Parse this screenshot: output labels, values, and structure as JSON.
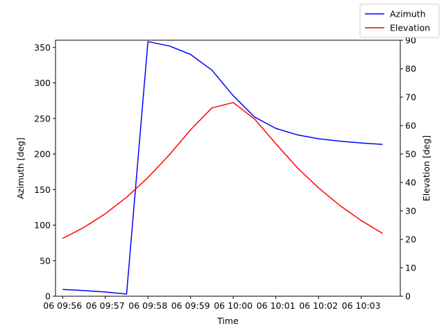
{
  "chart_data": {
    "type": "line",
    "xlabel": "Time",
    "x_tick_labels": [
      "06 09:56",
      "06 09:57",
      "06 09:58",
      "06 09:59",
      "06 10:00",
      "06 10:01",
      "06 10:02",
      "06 10:03"
    ],
    "x": [
      "09:56:00",
      "09:56:30",
      "09:57:00",
      "09:57:30",
      "09:58:00",
      "09:58:30",
      "09:59:00",
      "09:59:30",
      "10:00:00",
      "10:00:30",
      "10:01:00",
      "10:01:30",
      "10:02:00",
      "10:02:30",
      "10:03:00",
      "10:03:30"
    ],
    "x_range": [
      "09:55:50",
      "10:03:55"
    ],
    "axes": {
      "left": {
        "label": "Azimuth [deg]",
        "ylim": [
          0,
          360
        ],
        "ticks": [
          0,
          50,
          100,
          150,
          200,
          250,
          300,
          350
        ]
      },
      "right": {
        "label": "Elevation [deg]",
        "ylim": [
          0,
          90
        ],
        "ticks": [
          0,
          10,
          20,
          30,
          40,
          50,
          60,
          70,
          80,
          90
        ]
      }
    },
    "series": [
      {
        "name": "Azimuth",
        "axis": "left",
        "color": "#0000ff",
        "values": [
          9.5,
          8,
          6,
          3,
          358,
          352,
          340,
          318,
          282,
          252,
          236,
          227,
          221.5,
          218,
          215.5,
          213.5
        ]
      },
      {
        "name": "Elevation",
        "axis": "right",
        "color": "#ff0000",
        "values": [
          20.3,
          24.2,
          29,
          34.8,
          41.7,
          49.7,
          58.5,
          66.2,
          68.1,
          62.3,
          53.6,
          45.2,
          38.1,
          31.9,
          26.6,
          22.1
        ]
      }
    ],
    "legend": {
      "placement": "top-right",
      "entries": [
        "Azimuth",
        "Elevation"
      ]
    },
    "grid": false
  }
}
